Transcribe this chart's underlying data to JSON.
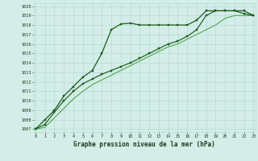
{
  "x": [
    0,
    1,
    2,
    3,
    4,
    5,
    6,
    7,
    8,
    9,
    10,
    11,
    12,
    13,
    14,
    15,
    16,
    17,
    18,
    19,
    20,
    21,
    22,
    23
  ],
  "line1": [
    1007.0,
    1008.0,
    1009.0,
    1010.5,
    1011.5,
    1012.5,
    1013.2,
    1015.0,
    1017.5,
    1018.1,
    1018.2,
    1018.0,
    1018.0,
    1018.0,
    1018.0,
    1018.0,
    1018.0,
    1018.5,
    1019.5,
    1019.5,
    1019.5,
    1019.5,
    1019.5,
    1019.0
  ],
  "line2": [
    1007.0,
    1007.5,
    1008.8,
    1010.0,
    1011.0,
    1011.8,
    1012.3,
    1012.8,
    1013.2,
    1013.6,
    1014.0,
    1014.5,
    1015.0,
    1015.5,
    1016.0,
    1016.3,
    1016.8,
    1017.5,
    1019.0,
    1019.5,
    1019.5,
    1019.5,
    1019.2,
    1019.0
  ],
  "line3": [
    1007.0,
    1007.2,
    1008.2,
    1009.2,
    1010.2,
    1011.0,
    1011.7,
    1012.2,
    1012.7,
    1013.2,
    1013.7,
    1014.2,
    1014.7,
    1015.2,
    1015.7,
    1016.0,
    1016.5,
    1017.0,
    1017.5,
    1018.0,
    1018.7,
    1019.0,
    1019.0,
    1019.0
  ],
  "line1_color": "#1a5c1a",
  "line2_color": "#1a5c1a",
  "line3_color": "#4aaa4a",
  "bg_color": "#d4ede8",
  "grid_color": "#b0d8d0",
  "text_color": "#1a3a1a",
  "title": "Graphe pression niveau de la mer (hPa)",
  "ylim_min": 1007,
  "ylim_max": 1020,
  "xlim_min": 0,
  "xlim_max": 23
}
